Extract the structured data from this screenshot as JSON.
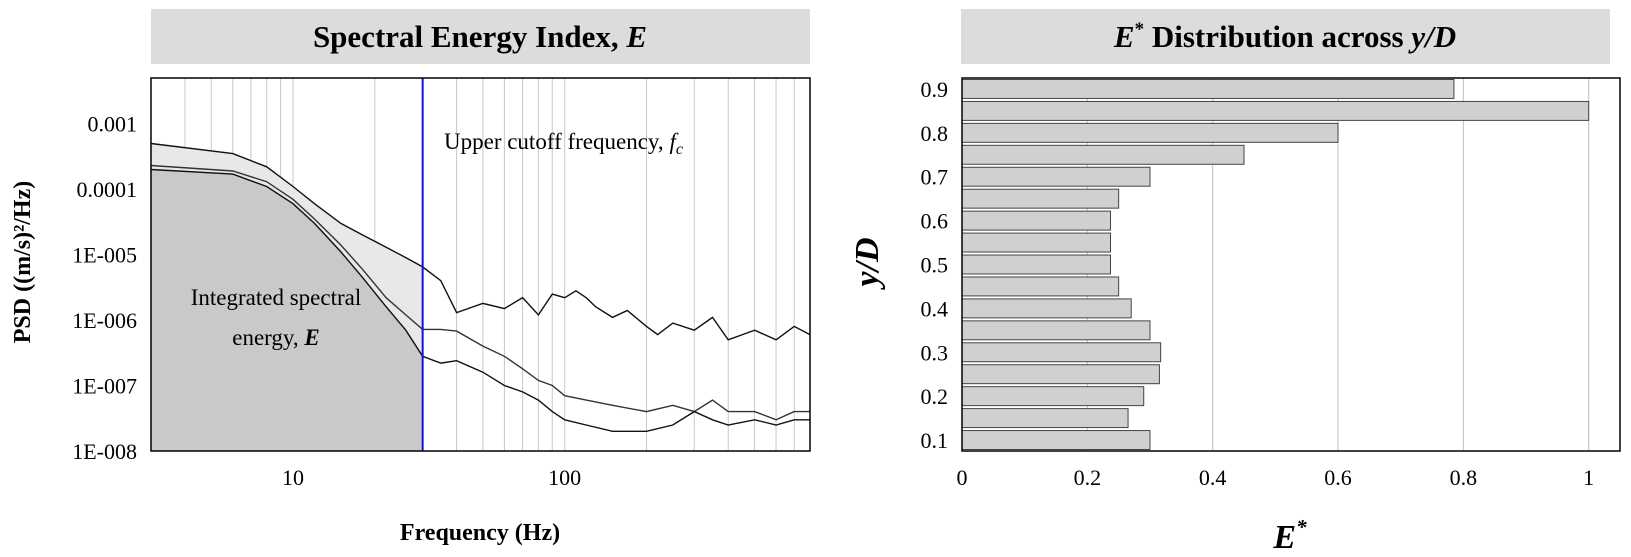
{
  "chart_data": [
    {
      "type": "line",
      "title": "Spectral Energy Index, E",
      "title_parts": {
        "pre": "Spectral Energy Index, ",
        "italic": "E"
      },
      "xlabel": "Frequency (Hz)",
      "ylabel": "PSD ((m/s)²/Hz)",
      "x_scale": "log",
      "y_scale": "log",
      "xlim": [
        3,
        800
      ],
      "ylim": [
        1e-08,
        0.005
      ],
      "x_ticks": [
        10,
        100
      ],
      "x_tick_labels": [
        "10",
        "100"
      ],
      "y_ticks": [
        1e-08,
        1e-07,
        1e-06,
        1e-05,
        0.0001,
        0.001
      ],
      "y_tick_labels": [
        "1E-008",
        "1E-007",
        "1E-006",
        "1E-005",
        "0.0001",
        "0.001"
      ],
      "grid": "vertical minor",
      "cutoff_frequency": 30,
      "annotations": {
        "cutoff_label": {
          "text": "Upper cutoff frequency, ",
          "italic": "f",
          "sub": "c"
        },
        "energy_label_line1": "Integrated spectral",
        "energy_label_line2_pre": "energy, ",
        "energy_label_line2_bold": "E"
      },
      "series": [
        {
          "x": [
            3,
            6,
            8,
            10,
            12,
            15,
            18,
            22,
            26,
            30,
            35,
            40,
            50,
            60,
            70,
            80,
            90,
            100,
            110,
            120,
            130,
            150,
            170,
            200,
            220,
            250,
            300,
            350,
            400,
            500,
            600,
            700,
            800
          ],
          "y": [
            0.0005,
            0.00035,
            0.00022,
            0.00011,
            6e-05,
            3e-05,
            2e-05,
            1.3e-05,
            9e-06,
            6.5e-06,
            4e-06,
            1.3e-06,
            1.8e-06,
            1.5e-06,
            2.2e-06,
            1.2e-06,
            2.5e-06,
            2.2e-06,
            2.8e-06,
            2.2e-06,
            1.6e-06,
            1.1e-06,
            1.4e-06,
            8e-07,
            6e-07,
            9e-07,
            7e-07,
            1.1e-06,
            5e-07,
            7e-07,
            5e-07,
            8e-07,
            6e-07
          ]
        },
        {
          "x": [
            3,
            6,
            8,
            10,
            12,
            15,
            18,
            22,
            26,
            30,
            35,
            40,
            50,
            60,
            70,
            80,
            90,
            100,
            120,
            150,
            200,
            250,
            300,
            350,
            400,
            500,
            600,
            700,
            800
          ],
          "y": [
            0.00023,
            0.00019,
            0.00013,
            7e-05,
            3.5e-05,
            1.4e-05,
            6e-06,
            2.2e-06,
            1.2e-06,
            7.2e-07,
            7.2e-07,
            6.8e-07,
            4e-07,
            2.8e-07,
            1.8e-07,
            1.2e-07,
            1e-07,
            7e-08,
            6e-08,
            5e-08,
            4e-08,
            5e-08,
            4e-08,
            6e-08,
            4e-08,
            4e-08,
            3e-08,
            4e-08,
            4e-08
          ]
        },
        {
          "x": [
            3,
            6,
            8,
            10,
            12,
            15,
            18,
            22,
            26,
            30,
            35,
            40,
            50,
            60,
            70,
            80,
            90,
            100,
            120,
            150,
            200,
            250,
            300,
            350,
            400,
            500,
            600,
            700,
            800
          ],
          "y": [
            0.0002,
            0.00017,
            0.00011,
            6e-05,
            3e-05,
            1.1e-05,
            4.5e-06,
            1.6e-06,
            7e-07,
            2.8e-07,
            2.2e-07,
            2.4e-07,
            1.6e-07,
            1e-07,
            8e-08,
            6e-08,
            4e-08,
            3e-08,
            2.5e-08,
            2e-08,
            2e-08,
            2.5e-08,
            4e-08,
            3e-08,
            2.5e-08,
            3e-08,
            2.5e-08,
            3e-08,
            3e-08
          ]
        }
      ]
    },
    {
      "type": "bar",
      "orientation": "horizontal",
      "title": "E* Distribution across y/D",
      "title_parts": {
        "italic1": "E",
        "sup": "*",
        "mid": " Distribution across ",
        "italic2": "y/D"
      },
      "xlabel": "E*",
      "ylabel": "y/D",
      "xlim": [
        0,
        1.05
      ],
      "x_ticks": [
        0,
        0.2,
        0.4,
        0.6,
        0.8,
        1
      ],
      "x_tick_labels": [
        "0",
        "0.2",
        "0.4",
        "0.6",
        "0.8",
        "1"
      ],
      "y_tick_labels": [
        "0.1",
        "0.2",
        "0.3",
        "0.4",
        "0.5",
        "0.6",
        "0.7",
        "0.8",
        "0.9"
      ],
      "grid": "vertical",
      "categories": [
        0.1,
        0.15,
        0.2,
        0.25,
        0.3,
        0.35,
        0.4,
        0.45,
        0.5,
        0.55,
        0.6,
        0.65,
        0.7,
        0.75,
        0.8,
        0.85,
        0.9
      ],
      "values": [
        0.3,
        0.265,
        0.29,
        0.315,
        0.317,
        0.3,
        0.27,
        0.25,
        0.237,
        0.237,
        0.237,
        0.25,
        0.3,
        0.45,
        0.6,
        1.0,
        0.785
      ]
    }
  ],
  "colors": {
    "title_band": "#dcdcdc",
    "shade_light": "#e8e8e8",
    "shade_dark": "#c9c9c9",
    "cutoff_line": "#1010e0",
    "bar_fill": "#d0d0d0",
    "grid": "#c0c0c0"
  }
}
